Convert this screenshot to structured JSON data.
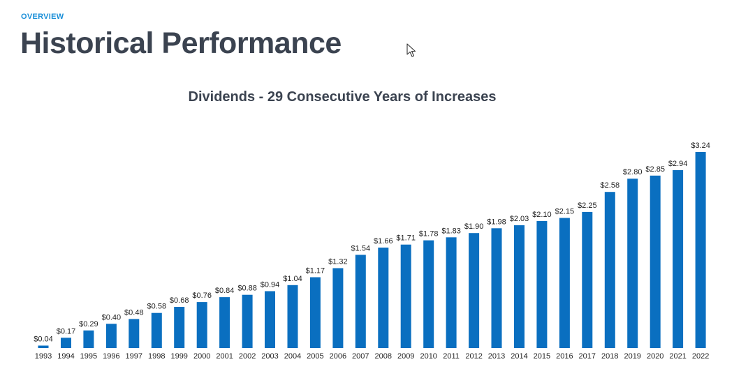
{
  "header": {
    "eyebrow": "OVERVIEW",
    "title": "Historical Performance"
  },
  "colors": {
    "accent": "#1a8fd8",
    "bar": "#0a6fc0",
    "title_text": "#3b4350"
  },
  "chart_data": {
    "type": "bar",
    "title": "Dividends - 29 Consecutive Years of Increases",
    "xlabel": "",
    "ylabel": "",
    "grid": false,
    "categories": [
      "1993",
      "1994",
      "1995",
      "1996",
      "1997",
      "1998",
      "1999",
      "2000",
      "2001",
      "2002",
      "2003",
      "2004",
      "2005",
      "2006",
      "2007",
      "2008",
      "2009",
      "2010",
      "2011",
      "2012",
      "2013",
      "2014",
      "2015",
      "2016",
      "2017",
      "2018",
      "2019",
      "2020",
      "2021",
      "2022"
    ],
    "values": [
      0.04,
      0.17,
      0.29,
      0.4,
      0.48,
      0.58,
      0.68,
      0.76,
      0.84,
      0.88,
      0.94,
      1.04,
      1.17,
      1.32,
      1.54,
      1.66,
      1.71,
      1.78,
      1.83,
      1.9,
      1.98,
      2.03,
      2.1,
      2.15,
      2.25,
      2.58,
      2.8,
      2.85,
      2.94,
      3.24
    ],
    "labels": [
      "$0.04",
      "$0.17",
      "$0.29",
      "$0.40",
      "$0.48",
      "$0.58",
      "$0.68",
      "$0.76",
      "$0.84",
      "$0.88",
      "$0.94",
      "$1.04",
      "$1.17",
      "$1.32",
      "$1.54",
      "$1.66",
      "$1.71",
      "$1.78",
      "$1.83",
      "$1.90",
      "$1.98",
      "$2.03",
      "$2.10",
      "$2.15",
      "$2.25",
      "$2.58",
      "$2.80",
      "$2.85",
      "$2.94",
      "$3.24"
    ],
    "ylim": [
      0,
      3.24
    ]
  }
}
